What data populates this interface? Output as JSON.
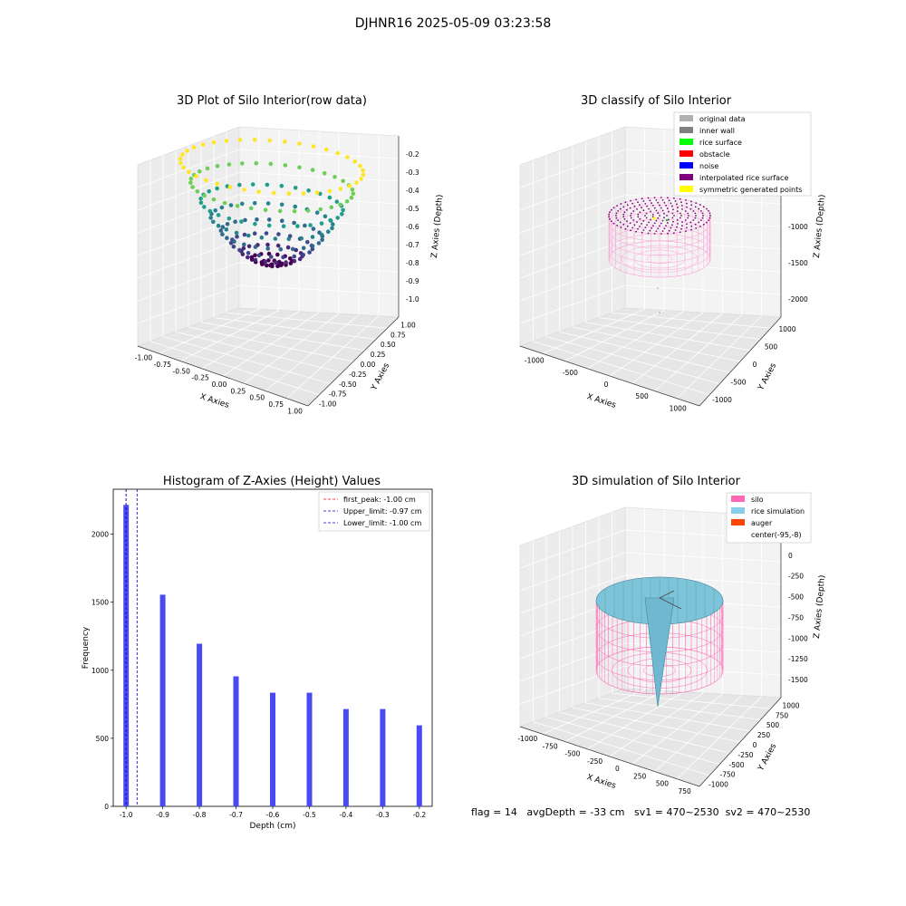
{
  "suptitle": "DJHNR16 2025-05-09 03:23:58",
  "chart_data": [
    {
      "type": "scatter",
      "panel": "3d-scatter",
      "title": "3D Plot of Silo Interior(row data)",
      "xlabel": "X Axies",
      "ylabel": "Y Axies",
      "zlabel": "Z Axies (Depth)",
      "xticks": [
        "-1.00",
        "-0.75",
        "-0.50",
        "-0.25",
        "0.00",
        "0.25",
        "0.50",
        "0.75",
        "1.00"
      ],
      "yticks": [
        "-1.00",
        "-0.75",
        "-0.50",
        "-0.25",
        "0.00",
        "0.25",
        "0.50",
        "0.75",
        "1.00"
      ],
      "zticks": [
        "-0.2",
        "-0.3",
        "-0.4",
        "-0.5",
        "-0.6",
        "-0.7",
        "-0.8",
        "-0.9",
        "-1.0"
      ],
      "xlim": [
        -1,
        1
      ],
      "ylim": [
        -1,
        1
      ],
      "zlim": [
        -1.0,
        -0.2
      ],
      "colormap": "viridis"
    },
    {
      "type": "scatter",
      "panel": "3d-classify",
      "title": "3D classify of Silo Interior",
      "xlabel": "X Axies",
      "ylabel": "Y Axies",
      "zlabel": "Z Axies (Depth)",
      "xticks": [
        "-1000",
        "-500",
        "0",
        "500",
        "1000"
      ],
      "yticks": [
        "-1000",
        "-500",
        "0",
        "500",
        "1000"
      ],
      "zticks": [
        "0",
        "-500",
        "-1000",
        "-1500",
        "-2000"
      ],
      "legend": [
        {
          "label": "original data",
          "color": "#b0b0b0"
        },
        {
          "label": "inner wall",
          "color": "#808080"
        },
        {
          "label": "rice surface",
          "color": "#00ff00"
        },
        {
          "label": "obstacle",
          "color": "#ff0000"
        },
        {
          "label": "noise",
          "color": "#0000ff"
        },
        {
          "label": "interpolated rice surface",
          "color": "#800080"
        },
        {
          "label": "symmetric generated points",
          "color": "#ffff00"
        }
      ],
      "legend_loc": "upper right"
    },
    {
      "type": "bar",
      "panel": "histogram",
      "title": "Histogram of Z-Axies (Height) Values",
      "xlabel": "Depth (cm)",
      "ylabel": "Frequency",
      "x": [
        -1.0,
        -0.9,
        -0.8,
        -0.7,
        -0.6,
        -0.5,
        -0.4,
        -0.3,
        -0.2
      ],
      "values": [
        2215,
        1555,
        1195,
        955,
        835,
        835,
        715,
        715,
        595
      ],
      "xlim": [
        -1.035,
        -0.165
      ],
      "ylim": [
        0,
        2330
      ],
      "xticks": [
        "-1.0",
        "-0.9",
        "-0.8",
        "-0.7",
        "-0.6",
        "-0.5",
        "-0.4",
        "-0.3",
        "-0.2"
      ],
      "yticks": [
        "0",
        "500",
        "1000",
        "1500",
        "2000"
      ],
      "bar_color": "#4a4af5",
      "lines": [
        {
          "label": "first_peak: -1.00 cm",
          "x": -1.0,
          "color": "#ff0000"
        },
        {
          "label": "Upper_limit: -0.97 cm",
          "x": -0.97,
          "color": "#0000cc"
        },
        {
          "label": "Lower_limit: -1.00 cm",
          "x": -1.0,
          "color": "#0000cc"
        }
      ],
      "legend_loc": "upper right"
    },
    {
      "type": "surface",
      "panel": "3d-simulation",
      "title": "3D simulation of Silo Interior",
      "xlabel": "X Axies",
      "ylabel": "Y Axies",
      "zlabel": "Z Axies (Depth)",
      "xticks": [
        "-1000",
        "-750",
        "-500",
        "-250",
        "0",
        "250",
        "500",
        "750"
      ],
      "yticks": [
        "-1000",
        "-750",
        "-500",
        "-250",
        "0",
        "250",
        "500",
        "750",
        "1000"
      ],
      "zticks": [
        "250",
        "0",
        "-250",
        "-500",
        "-750",
        "-1000",
        "-1250",
        "-1500"
      ],
      "legend": [
        {
          "label": "silo",
          "color": "#ff69b4"
        },
        {
          "label": "rice simulation",
          "color": "#87ceeb"
        },
        {
          "label": "auger",
          "color": "#ff4500"
        },
        {
          "label": "center(-95,-8)",
          "color": "#ffffff"
        }
      ],
      "legend_loc": "upper right"
    }
  ],
  "footer": "flag = 14   avgDepth = -33 cm   sv1 = 470~2530  sv2 = 470~2530"
}
